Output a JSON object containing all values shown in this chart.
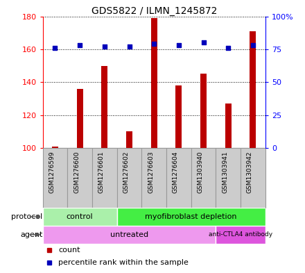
{
  "title": "GDS5822 / ILMN_1245872",
  "samples": [
    "GSM1276599",
    "GSM1276600",
    "GSM1276601",
    "GSM1276602",
    "GSM1276603",
    "GSM1276604",
    "GSM1303940",
    "GSM1303941",
    "GSM1303942"
  ],
  "counts": [
    101,
    136,
    150,
    110,
    179,
    138,
    145,
    127,
    171
  ],
  "percentiles": [
    76,
    78,
    77,
    77,
    79,
    78,
    80,
    76,
    78
  ],
  "bar_color": "#bb0000",
  "dot_color": "#0000bb",
  "ylim_left": [
    100,
    180
  ],
  "ylim_right": [
    0,
    100
  ],
  "right_ticks": [
    0,
    25,
    50,
    75,
    100
  ],
  "right_tick_labels": [
    "0",
    "25",
    "50",
    "75",
    "100%"
  ],
  "left_ticks": [
    100,
    120,
    140,
    160,
    180
  ],
  "protocol_groups": [
    {
      "label": "control",
      "start": 0,
      "end": 3,
      "color": "#aaf0aa"
    },
    {
      "label": "myofibroblast depletion",
      "start": 3,
      "end": 9,
      "color": "#44ee44"
    }
  ],
  "agent_groups": [
    {
      "label": "untreated",
      "start": 0,
      "end": 7,
      "color": "#ee99ee"
    },
    {
      "label": "anti-CTLA4 antibody",
      "start": 7,
      "end": 9,
      "color": "#dd55dd"
    }
  ],
  "sample_box_color": "#cccccc",
  "sample_box_edge": "#999999",
  "background_color": "#ffffff"
}
